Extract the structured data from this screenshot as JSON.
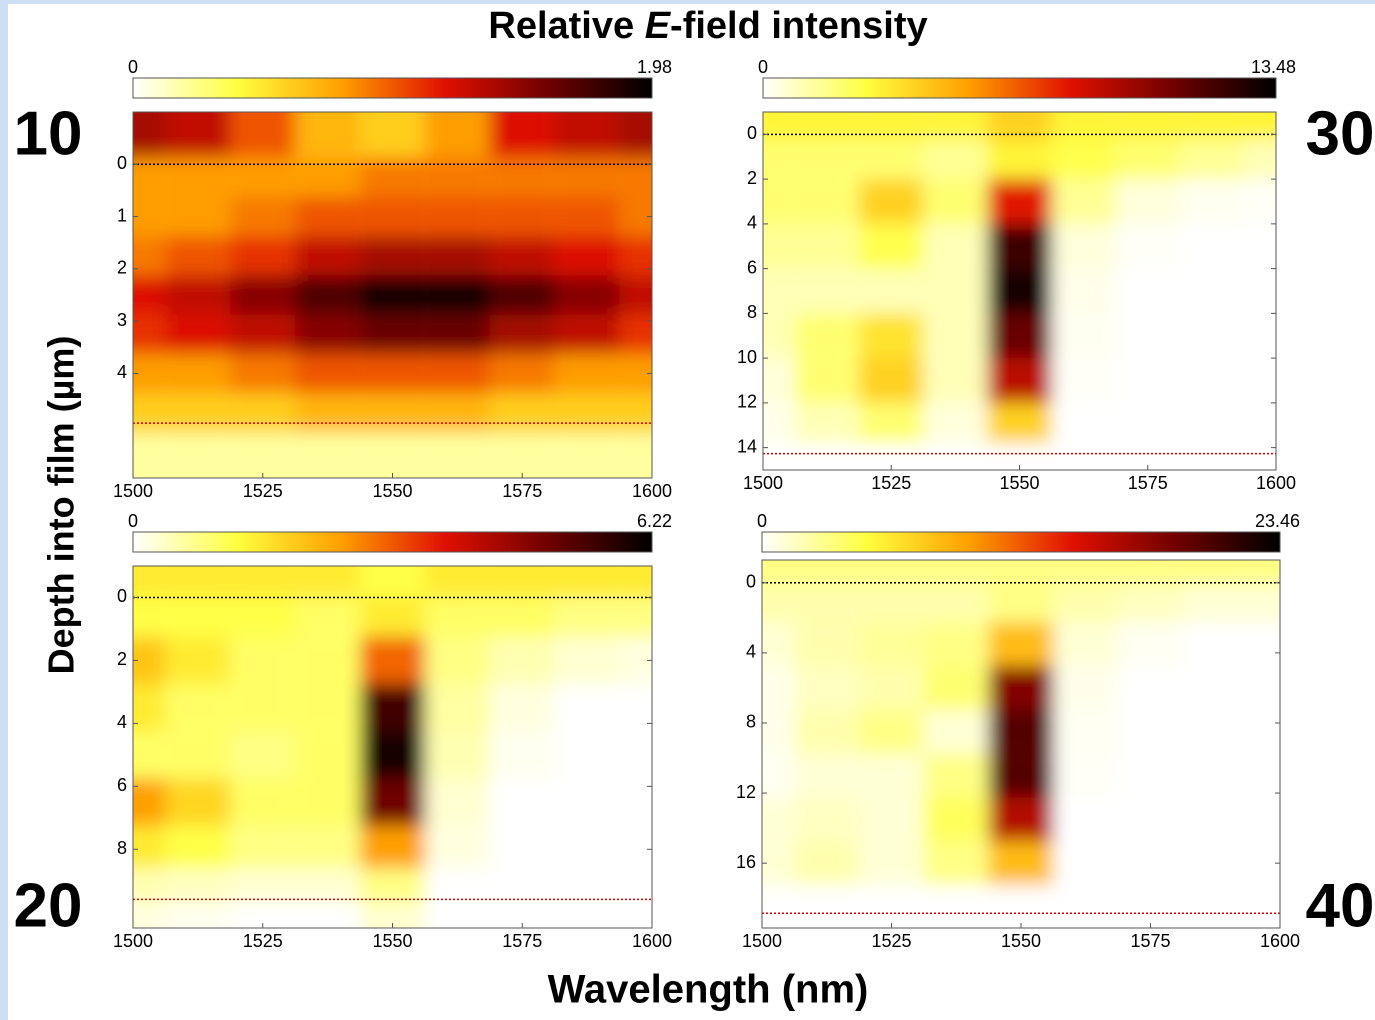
{
  "title": [
    "Relative ",
    "E",
    "-field intensity"
  ],
  "xlabel": "Wavelength (nm)",
  "ylabel": "Depth into film (µm)",
  "colormap": [
    "#ffffff",
    "#ffff40",
    "#ffa000",
    "#e01000",
    "#700000",
    "#000000"
  ],
  "chart_data": [
    {
      "type": "heatmap",
      "panel_label": "10",
      "x": [
        1500,
        1512.5,
        1525,
        1537.5,
        1550,
        1562.5,
        1575,
        1587.5,
        1600
      ],
      "y": [
        -0.5,
        0.25,
        1,
        1.75,
        2.5,
        3.25,
        4,
        4.75,
        5.5
      ],
      "z": [
        [
          1.4,
          1.3,
          1.0,
          0.7,
          0.6,
          0.8,
          1.2,
          1.3,
          1.4
        ],
        [
          0.8,
          0.8,
          0.8,
          0.8,
          0.9,
          0.9,
          0.9,
          0.9,
          0.9
        ],
        [
          0.8,
          0.8,
          0.9,
          1.0,
          1.0,
          1.0,
          1.0,
          1.0,
          0.9
        ],
        [
          0.9,
          1.0,
          1.1,
          1.3,
          1.4,
          1.4,
          1.3,
          1.2,
          1.1
        ],
        [
          1.2,
          1.3,
          1.5,
          1.7,
          1.9,
          1.9,
          1.7,
          1.5,
          1.3
        ],
        [
          1.1,
          1.2,
          1.3,
          1.5,
          1.6,
          1.6,
          1.4,
          1.3,
          1.1
        ],
        [
          0.8,
          0.8,
          0.9,
          1.0,
          1.0,
          1.0,
          0.9,
          0.8,
          0.8
        ],
        [
          0.6,
          0.6,
          0.6,
          0.7,
          0.7,
          0.7,
          0.6,
          0.6,
          0.6
        ],
        [
          0.2,
          0.2,
          0.2,
          0.2,
          0.2,
          0.2,
          0.2,
          0.2,
          0.2
        ]
      ],
      "xlim": [
        1500,
        1600
      ],
      "xticks": [
        1500,
        1525,
        1550,
        1575,
        1600
      ],
      "ylim": [
        -1,
        6
      ],
      "yticks": [
        0,
        1,
        2,
        3,
        4
      ],
      "clim": [
        0,
        1.98
      ],
      "cticks": [
        0,
        1.98
      ],
      "film_top": 0,
      "film_bottom": 4.95
    },
    {
      "type": "heatmap",
      "panel_label": "30",
      "x": [
        1500,
        1512.5,
        1525,
        1537.5,
        1550,
        1562.5,
        1575,
        1587.5,
        1600
      ],
      "y": [
        -0.5,
        1,
        3,
        5,
        7,
        9,
        11,
        13,
        14.6
      ],
      "z": [
        [
          3,
          3,
          3,
          3,
          4,
          3,
          3,
          3,
          3
        ],
        [
          2,
          2,
          2,
          1.5,
          3,
          2.5,
          2,
          1.5,
          1
        ],
        [
          2,
          2,
          4,
          2,
          8,
          1.5,
          0.5,
          0.2,
          0.1
        ],
        [
          1.5,
          1.5,
          2.5,
          1,
          12,
          0.5,
          0.1,
          0,
          0
        ],
        [
          1,
          1,
          1,
          1,
          13,
          0.3,
          0,
          0,
          0
        ],
        [
          1,
          2,
          3.5,
          1,
          11,
          0.2,
          0,
          0,
          0
        ],
        [
          0.5,
          2,
          4,
          1,
          9,
          0.1,
          0,
          0,
          0
        ],
        [
          0.3,
          1,
          2,
          0.5,
          4,
          0,
          0,
          0,
          0
        ],
        [
          0,
          0,
          0,
          0,
          0,
          0,
          0,
          0,
          0
        ]
      ],
      "xlim": [
        1500,
        1600
      ],
      "xticks": [
        1500,
        1525,
        1550,
        1575,
        1600
      ],
      "ylim": [
        -1,
        15
      ],
      "yticks": [
        0,
        2,
        4,
        6,
        8,
        10,
        12,
        14
      ],
      "clim": [
        0,
        13.48
      ],
      "cticks": [
        0,
        13.48
      ],
      "film_top": 0,
      "film_bottom": 14.27
    },
    {
      "type": "heatmap",
      "panel_label": "20",
      "x": [
        1500,
        1512.5,
        1525,
        1537.5,
        1550,
        1562.5,
        1575,
        1587.5,
        1600
      ],
      "y": [
        -0.5,
        0.5,
        2,
        3.5,
        5,
        6.5,
        8,
        9.2,
        10.2
      ],
      "z": [
        [
          1.5,
          1.5,
          1.5,
          1.5,
          1.2,
          1.5,
          1.5,
          1.5,
          1.5
        ],
        [
          1.2,
          1.2,
          1.2,
          1,
          1.5,
          1,
          1,
          0.8,
          0.8
        ],
        [
          2,
          1.5,
          1,
          1,
          3,
          0.8,
          0.5,
          0.3,
          0.2
        ],
        [
          1.5,
          1,
          1,
          1,
          5.5,
          0.6,
          0.2,
          0,
          0
        ],
        [
          1,
          1,
          0.8,
          1,
          6,
          0.5,
          0.1,
          0,
          0
        ],
        [
          2.5,
          1.8,
          1,
          1,
          5,
          0.3,
          0,
          0,
          0
        ],
        [
          1.5,
          1.2,
          0.8,
          0.8,
          2.5,
          0.2,
          0,
          0,
          0
        ],
        [
          0.5,
          0.4,
          0.3,
          0.3,
          0.8,
          0,
          0,
          0,
          0
        ],
        [
          0.2,
          0.1,
          0,
          0,
          0.3,
          0,
          0,
          0,
          0
        ]
      ],
      "xlim": [
        1500,
        1600
      ],
      "xticks": [
        1500,
        1525,
        1550,
        1575,
        1600
      ],
      "ylim": [
        -1,
        10.5
      ],
      "yticks": [
        0,
        2,
        4,
        6,
        8
      ],
      "clim": [
        0,
        6.22
      ],
      "cticks": [
        0,
        6.22
      ],
      "film_top": 0,
      "film_bottom": 9.59
    },
    {
      "type": "heatmap",
      "panel_label": "40",
      "x": [
        1500,
        1512.5,
        1525,
        1537.5,
        1550,
        1562.5,
        1575,
        1587.5,
        1600
      ],
      "y": [
        -0.8,
        1,
        3.5,
        6,
        8.5,
        11,
        13.5,
        16,
        18.5
      ],
      "z": [
        [
          3,
          3,
          3,
          3,
          3,
          3,
          3,
          3,
          3
        ],
        [
          2,
          2,
          2,
          2,
          3,
          2,
          1.5,
          1,
          1
        ],
        [
          1,
          2,
          2.5,
          3,
          8,
          1,
          0.3,
          0,
          0
        ],
        [
          0.5,
          1.5,
          2,
          3.5,
          18,
          0.5,
          0,
          0,
          0
        ],
        [
          0.5,
          2,
          3,
          1,
          20,
          0.3,
          0,
          0,
          0
        ],
        [
          0.3,
          1,
          1,
          3,
          20,
          0.2,
          0,
          0,
          0
        ],
        [
          1,
          1.5,
          1,
          4,
          16,
          0,
          0,
          0,
          0
        ],
        [
          1,
          2,
          1,
          3,
          8,
          0,
          0,
          0,
          0
        ],
        [
          0,
          0,
          0,
          0,
          0,
          0,
          0,
          0,
          0
        ]
      ],
      "xlim": [
        1500,
        1600
      ],
      "xticks": [
        1500,
        1525,
        1550,
        1575,
        1600
      ],
      "ylim": [
        -1.3,
        19.7
      ],
      "yticks": [
        0,
        4,
        8,
        12,
        16
      ],
      "clim": [
        0,
        23.46
      ],
      "cticks": [
        0,
        23.46
      ],
      "film_top": 0,
      "film_bottom": 18.86
    }
  ]
}
